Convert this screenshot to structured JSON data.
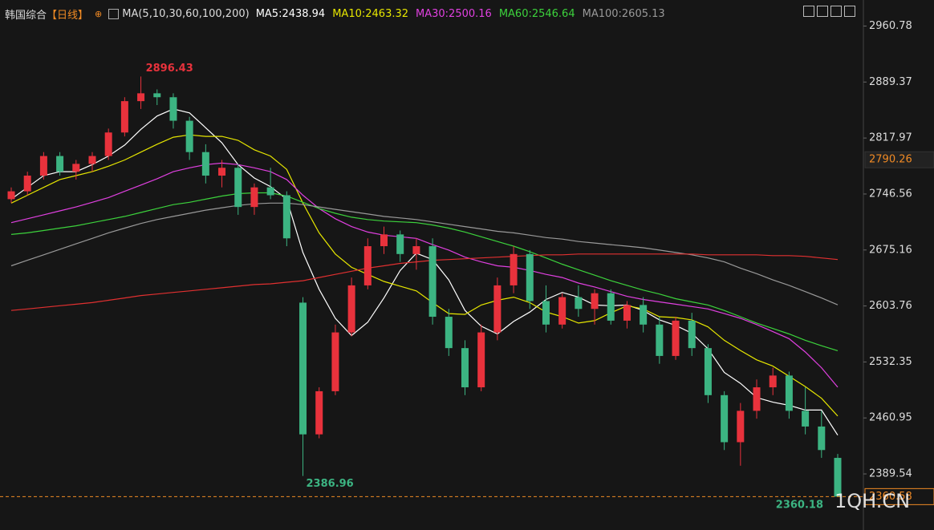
{
  "chart_data": {
    "type": "candlestick",
    "title": "韩国综合",
    "period": "【日线】",
    "indicator": "MA(5,10,30,60,100,200)",
    "up_color": "#e8323c",
    "down_color": "#3cb482",
    "ylim": [
      2318,
      2994
    ],
    "yticks": [
      2960.78,
      2889.37,
      2817.97,
      2746.56,
      2675.16,
      2603.76,
      2532.35,
      2460.95,
      2389.54
    ],
    "marker_price": 2790.26,
    "watermark": "1QH.CN",
    "open": [
      2740,
      2750,
      2770,
      2795,
      2775,
      2785,
      2795,
      2825,
      2865,
      2875,
      2870,
      2840,
      2800,
      2770,
      2780,
      2730,
      2755,
      2745,
      2608,
      2440,
      2495,
      2570,
      2630,
      2680,
      2695,
      2670,
      2680,
      2590,
      2550,
      2500,
      2570,
      2630,
      2670,
      2610,
      2580,
      2615,
      2600,
      2620,
      2585,
      2605,
      2580,
      2540,
      2585,
      2550,
      2490,
      2430,
      2470,
      2500,
      2515,
      2470,
      2450,
      2410
    ],
    "high": [
      2755,
      2775,
      2800,
      2800,
      2790,
      2800,
      2830,
      2870,
      2896.43,
      2880,
      2875,
      2845,
      2810,
      2790,
      2785,
      2760,
      2780,
      2750,
      2615,
      2500,
      2580,
      2640,
      2690,
      2705,
      2700,
      2690,
      2690,
      2600,
      2560,
      2580,
      2640,
      2680,
      2675,
      2630,
      2620,
      2630,
      2625,
      2625,
      2610,
      2615,
      2590,
      2590,
      2595,
      2555,
      2495,
      2480,
      2510,
      2525,
      2520,
      2500,
      2470,
      2415
    ],
    "low": [
      2735,
      2745,
      2765,
      2770,
      2765,
      2775,
      2790,
      2820,
      2855,
      2860,
      2830,
      2790,
      2760,
      2755,
      2720,
      2720,
      2740,
      2680,
      2386.96,
      2435,
      2490,
      2565,
      2625,
      2670,
      2660,
      2650,
      2580,
      2540,
      2490,
      2495,
      2560,
      2620,
      2600,
      2570,
      2575,
      2590,
      2580,
      2580,
      2575,
      2570,
      2530,
      2535,
      2540,
      2480,
      2420,
      2400,
      2460,
      2490,
      2460,
      2440,
      2410,
      2360.18
    ],
    "close": [
      2750,
      2770,
      2795,
      2775,
      2785,
      2795,
      2825,
      2865,
      2875,
      2870,
      2840,
      2800,
      2770,
      2780,
      2730,
      2755,
      2745,
      2690,
      2440,
      2495,
      2570,
      2630,
      2680,
      2695,
      2670,
      2680,
      2590,
      2550,
      2500,
      2570,
      2630,
      2670,
      2610,
      2580,
      2615,
      2600,
      2620,
      2585,
      2605,
      2580,
      2540,
      2585,
      2550,
      2490,
      2430,
      2470,
      2500,
      2515,
      2470,
      2450,
      2420,
      2360.58
    ],
    "series": [
      {
        "name": "MA5:2438.94",
        "color": "#ffffff",
        "values": [
          2740,
          2755,
          2770,
          2775,
          2775,
          2784,
          2795,
          2809,
          2829,
          2846,
          2855,
          2850,
          2831,
          2812,
          2784,
          2767,
          2756,
          2740,
          2672,
          2625,
          2588,
          2566,
          2583,
          2614,
          2649,
          2671,
          2663,
          2637,
          2598,
          2578,
          2568,
          2584,
          2596,
          2612,
          2621,
          2615,
          2605,
          2604,
          2605,
          2598,
          2586,
          2579,
          2569,
          2549,
          2519,
          2505,
          2487,
          2481,
          2477,
          2471,
          2471,
          2438.94
        ]
      },
      {
        "name": "MA10:2463.32",
        "color": "#e6e600",
        "values": [
          2735,
          2745,
          2755,
          2765,
          2770,
          2775,
          2782,
          2790,
          2800,
          2810,
          2819,
          2822,
          2820,
          2820,
          2815,
          2803,
          2795,
          2778,
          2735,
          2697,
          2670,
          2653,
          2644,
          2635,
          2629,
          2623,
          2608,
          2594,
          2593,
          2605,
          2611,
          2615,
          2608,
          2596,
          2590,
          2582,
          2585,
          2595,
          2604,
          2600,
          2590,
          2589,
          2586,
          2577,
          2560,
          2547,
          2535,
          2527,
          2514,
          2501,
          2486,
          2463.32
        ]
      },
      {
        "name": "MA30:2500.16",
        "color": "#e040e0",
        "values": [
          2710,
          2715,
          2720,
          2725,
          2730,
          2736,
          2742,
          2750,
          2758,
          2766,
          2775,
          2780,
          2784,
          2786,
          2784,
          2780,
          2775,
          2765,
          2745,
          2728,
          2715,
          2705,
          2698,
          2694,
          2692,
          2690,
          2682,
          2675,
          2666,
          2660,
          2655,
          2653,
          2649,
          2644,
          2640,
          2633,
          2628,
          2622,
          2616,
          2612,
          2609,
          2606,
          2603,
          2600,
          2594,
          2588,
          2580,
          2571,
          2562,
          2545,
          2525,
          2500.16
        ]
      },
      {
        "name": "MA60:2546.64",
        "color": "#3cd23c",
        "values": [
          2695,
          2697,
          2700,
          2703,
          2706,
          2710,
          2714,
          2718,
          2723,
          2728,
          2733,
          2736,
          2740,
          2744,
          2747,
          2748,
          2748,
          2744,
          2736,
          2728,
          2722,
          2717,
          2714,
          2712,
          2711,
          2710,
          2707,
          2703,
          2698,
          2692,
          2686,
          2680,
          2673,
          2665,
          2657,
          2650,
          2643,
          2636,
          2630,
          2624,
          2619,
          2613,
          2609,
          2605,
          2598,
          2590,
          2582,
          2575,
          2568,
          2560,
          2553,
          2546.64
        ]
      },
      {
        "name": "MA100:2605.13",
        "color": "#999999",
        "values": [
          2655,
          2662,
          2669,
          2676,
          2683,
          2690,
          2697,
          2703,
          2709,
          2714,
          2718,
          2722,
          2726,
          2729,
          2732,
          2734,
          2735,
          2735,
          2733,
          2730,
          2727,
          2724,
          2721,
          2718,
          2716,
          2714,
          2711,
          2708,
          2705,
          2702,
          2699,
          2697,
          2694,
          2691,
          2689,
          2686,
          2684,
          2682,
          2680,
          2678,
          2675,
          2672,
          2669,
          2665,
          2660,
          2652,
          2645,
          2637,
          2630,
          2622,
          2614,
          2605.13
        ]
      },
      {
        "color": "#e03030",
        "values": [
          2598,
          2600,
          2602,
          2604,
          2606,
          2608,
          2611,
          2614,
          2617,
          2619,
          2621,
          2623,
          2625,
          2627,
          2629,
          2631,
          2632,
          2634,
          2636,
          2640,
          2644,
          2648,
          2652,
          2655,
          2658,
          2660,
          2662,
          2663,
          2664,
          2665,
          2666,
          2667,
          2668,
          2669,
          2669,
          2670,
          2670,
          2670,
          2670,
          2670,
          2670,
          2670,
          2670,
          2669,
          2669,
          2669,
          2669,
          2668,
          2668,
          2667,
          2665,
          2663
        ]
      }
    ]
  }
}
